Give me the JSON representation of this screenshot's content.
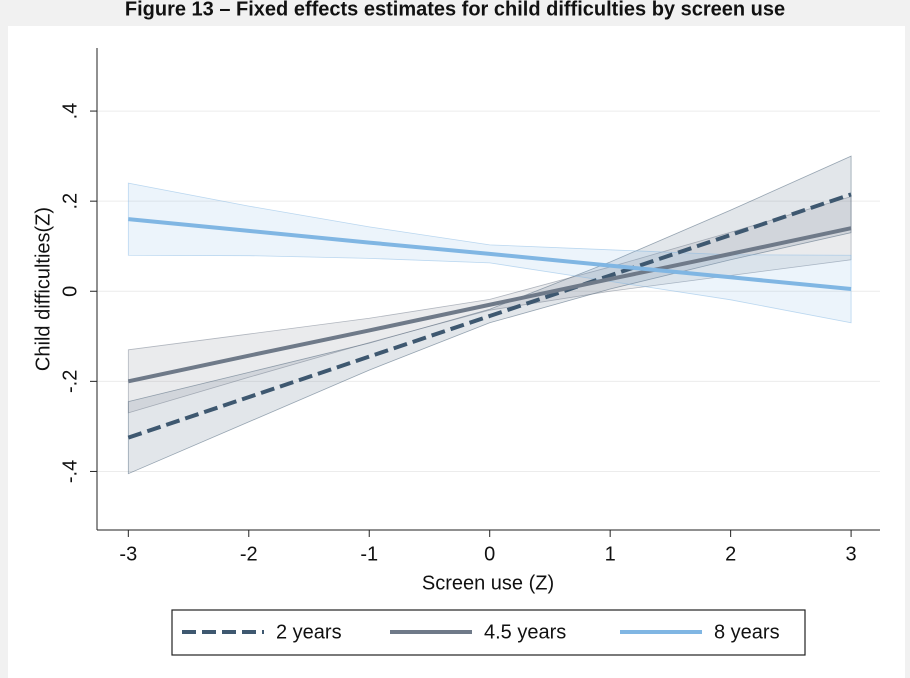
{
  "chart_data": {
    "type": "line",
    "title": "Figure 13 – Fixed effects estimates for child difficulties by screen use",
    "x_label": "Screen use (Z)",
    "y_label": "Child difficulties(Z)",
    "x": [
      -3,
      -2,
      -1,
      0,
      1,
      2,
      3
    ],
    "xlim": [
      -3.26,
      3.24
    ],
    "xticks": [
      -3,
      -2,
      -1,
      0,
      1,
      2,
      3
    ],
    "ylim": [
      -0.53,
      0.54
    ],
    "yticks": [
      {
        "value": -0.4,
        "label": "-.4"
      },
      {
        "value": -0.2,
        "label": "-.2"
      },
      0,
      {
        "value": 0.2,
        "label": ".2"
      },
      {
        "value": 0.4,
        "label": ".4"
      }
    ],
    "grid": true,
    "series": [
      {
        "name": "2 years",
        "color": "#3e5870",
        "dashed": true,
        "values": [
          -0.325,
          -0.235,
          -0.145,
          -0.055,
          0.035,
          0.125,
          0.215
        ],
        "lower": [
          -0.405,
          -0.29,
          -0.175,
          -0.07,
          0.005,
          0.07,
          0.13
        ],
        "upper": [
          -0.245,
          -0.18,
          -0.115,
          -0.04,
          0.065,
          0.18,
          0.3
        ]
      },
      {
        "name": "4.5 years",
        "color": "#6f7a89",
        "dashed": false,
        "values": [
          -0.2,
          -0.143,
          -0.087,
          -0.03,
          0.027,
          0.083,
          0.14
        ],
        "lower": [
          -0.27,
          -0.191,
          -0.114,
          -0.042,
          0,
          0.035,
          0.07
        ],
        "upper": [
          -0.13,
          -0.095,
          -0.06,
          -0.018,
          0.054,
          0.131,
          0.21
        ]
      },
      {
        "name": "8 years",
        "color": "#80b6e3",
        "dashed": false,
        "values": [
          0.16,
          0.134,
          0.108,
          0.083,
          0.057,
          0.031,
          0.005
        ],
        "lower": [
          0.08,
          0.079,
          0.073,
          0.063,
          0.022,
          -0.019,
          -0.07
        ],
        "upper": [
          0.24,
          0.189,
          0.143,
          0.103,
          0.092,
          0.081,
          0.08
        ]
      }
    ]
  }
}
